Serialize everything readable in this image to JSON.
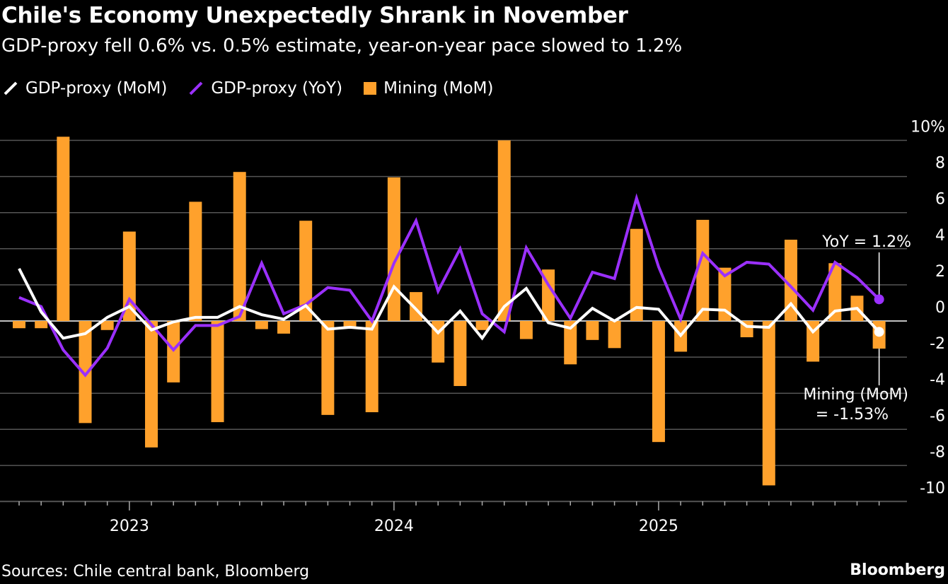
{
  "title": "Chile's Economy Unexpectedly Shrank in November",
  "subtitle": "GDP-proxy fell 0.6% vs. 0.5% estimate, year-on-year pace slowed to 1.2%",
  "source": "Sources: Chile central bank, Bloomberg",
  "brand": "Bloomberg",
  "colors": {
    "mom": "#ffffff",
    "yoy": "#9b30ff",
    "mining": "#ffa12c",
    "background": "#000000",
    "grid": "#555555"
  },
  "chart_data": {
    "type": "bar+line",
    "title": "Chile's Economy Unexpectedly Shrank in November",
    "x": [
      "2022-08",
      "2022-09",
      "2022-10",
      "2022-11",
      "2022-12",
      "2023-01",
      "2023-02",
      "2023-03",
      "2023-04",
      "2023-05",
      "2023-06",
      "2023-07",
      "2023-08",
      "2023-09",
      "2023-10",
      "2023-11",
      "2023-12",
      "2024-01",
      "2024-02",
      "2024-03",
      "2024-04",
      "2024-05",
      "2024-06",
      "2024-07",
      "2024-08",
      "2024-09",
      "2024-10",
      "2024-11",
      "2024-12",
      "2025-01",
      "2025-02",
      "2025-03",
      "2025-04",
      "2025-05",
      "2025-06",
      "2025-07",
      "2025-08",
      "2025-09",
      "2025-10",
      "2025-11"
    ],
    "x_tick_labels": [
      "2023",
      "2024",
      "2025"
    ],
    "y_ticks": [
      "10%",
      "8",
      "6",
      "4",
      "2",
      "0",
      "-2",
      "-4",
      "-6",
      "-8",
      "-10"
    ],
    "ylim": [
      -10,
      10
    ],
    "grid": true,
    "legend_placement": "top-left",
    "series": [
      {
        "name": "GDP-proxy (MoM)",
        "type": "line",
        "values": [
          2.9,
          0.5,
          -0.95,
          -0.7,
          0.2,
          0.8,
          -0.5,
          -0.05,
          0.2,
          0.2,
          0.8,
          0.35,
          0.1,
          0.85,
          -0.45,
          -0.35,
          -0.45,
          1.9,
          0.65,
          -0.65,
          0.55,
          -0.95,
          0.8,
          1.8,
          -0.1,
          -0.4,
          0.7,
          0.0,
          0.75,
          0.65,
          -0.8,
          0.65,
          0.6,
          -0.3,
          -0.35,
          0.95,
          -0.6,
          0.55,
          0.7,
          -0.6
        ]
      },
      {
        "name": "GDP-proxy (YoY)",
        "type": "line",
        "values": [
          1.3,
          0.8,
          -1.6,
          -3.0,
          -1.5,
          1.2,
          -0.2,
          -1.6,
          -0.25,
          -0.25,
          0.25,
          3.2,
          0.4,
          0.9,
          1.85,
          1.7,
          0.0,
          3.2,
          5.55,
          1.65,
          4.0,
          0.4,
          -0.6,
          4.05,
          2.0,
          0.15,
          2.7,
          2.35,
          6.8,
          3.0,
          0.1,
          3.75,
          2.5,
          3.25,
          3.15,
          1.9,
          0.6,
          3.25,
          2.4,
          1.2
        ]
      },
      {
        "name": "Mining (MoM)",
        "type": "bar",
        "values": [
          -0.4,
          -0.4,
          10.2,
          -5.65,
          -0.5,
          4.95,
          -7.0,
          -3.4,
          6.6,
          -5.6,
          8.25,
          -0.45,
          -0.7,
          5.55,
          -5.2,
          -0.3,
          -5.05,
          7.95,
          1.6,
          -2.3,
          -3.6,
          -0.5,
          10.0,
          -1.0,
          2.85,
          -2.4,
          -1.05,
          -1.5,
          5.1,
          -6.7,
          -1.7,
          5.6,
          2.95,
          -0.9,
          -9.1,
          4.5,
          -2.25,
          3.2,
          1.4,
          -1.53
        ]
      }
    ],
    "annotations": [
      {
        "text": "YoY = 1.2%",
        "series": "GDP-proxy (YoY)",
        "x": "2025-11"
      },
      {
        "text_lines": [
          "Mining (MoM)",
          "= -1.53%"
        ],
        "series": "Mining (MoM)",
        "x": "2025-11"
      }
    ]
  }
}
